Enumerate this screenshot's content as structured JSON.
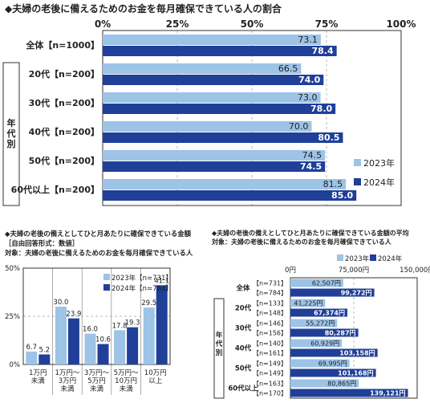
{
  "colors": {
    "y2023": "#9dc3e6",
    "y2024": "#1f3f99",
    "grid": "#b8b8b8",
    "frame": "#333333"
  },
  "top_chart": {
    "title": "◆夫婦の老後に備えるためのお金を毎月確保できている人の割合",
    "ticks": [
      "0%",
      "25%",
      "50%",
      "75%",
      "100%"
    ],
    "group_label": "年代別",
    "legend": [
      "2023年",
      "2024年"
    ],
    "chart_data": {
      "type": "bar",
      "orientation": "horizontal",
      "categories": [
        "全体【n=1000】",
        "20代【n=200】",
        "30代【n=200】",
        "40代【n=200】",
        "50代【n=200】",
        "60代以上【n=200】"
      ],
      "series": [
        {
          "name": "2023年",
          "values": [
            73.1,
            66.5,
            73.0,
            70.0,
            74.5,
            81.5
          ]
        },
        {
          "name": "2024年",
          "values": [
            78.4,
            74.0,
            78.0,
            80.5,
            74.5,
            85.0
          ]
        }
      ],
      "value_labels_2023": [
        "73.1",
        "66.5",
        "73.0",
        "70.0",
        "74.5",
        "81.5"
      ],
      "value_labels_2024": [
        "78.4",
        "74.0",
        "78.0",
        "80.5",
        "74.5",
        "85.0"
      ],
      "xlim": [
        0,
        100
      ],
      "legend_position": "right"
    }
  },
  "bottom_left": {
    "title1": "◆夫婦の老後の備えとしてひと月あたりに確保できている金額",
    "title2": "［自由回答形式：数値］",
    "title3": "対象：夫婦の老後に備えるためのお金を毎月確保できている人",
    "ticks": [
      "0%",
      "25%",
      "50%"
    ],
    "legend": [
      "2023年【n=731】",
      "2024年【n=784】"
    ],
    "chart_data": {
      "type": "bar",
      "categories": [
        [
          "1万円",
          "未満"
        ],
        [
          "1万円～",
          "3万円",
          "未満"
        ],
        [
          "3万円～",
          "5万円",
          "未満"
        ],
        [
          "5万円～",
          "10万円",
          "未満"
        ],
        [
          "10万円",
          "以上"
        ]
      ],
      "series": [
        {
          "name": "2023年【n=731】",
          "values": [
            6.7,
            30.0,
            16.0,
            17.8,
            29.5
          ]
        },
        {
          "name": "2024年【n=784】",
          "values": [
            5.2,
            23.9,
            10.6,
            19.3,
            41.1
          ]
        }
      ],
      "value_labels_2023": [
        "6.7",
        "30.0",
        "16.0",
        "17.8",
        "29.5"
      ],
      "value_labels_2024": [
        "5.2",
        "23.9",
        "10.6",
        "19.3",
        "41.1"
      ],
      "ylim": [
        0,
        50
      ],
      "legend_position": "top-right"
    }
  },
  "bottom_right": {
    "title1": "◆夫婦の老後の備えとしてひと月あたりに確保できている金額の平均",
    "title2": "対象：夫婦の老後に備えるためのお金を毎月確保できている人",
    "ticks": [
      "0円",
      "75,000円",
      "150,000円"
    ],
    "legend": [
      "2023年",
      "2024年"
    ],
    "group_label": "年代別",
    "chart_data": {
      "type": "bar",
      "orientation": "horizontal",
      "categories": [
        "全体",
        "20代",
        "30代",
        "40代",
        "50代",
        "60代以上"
      ],
      "n_2023": [
        "【n=731】",
        "【n=133】",
        "【n=146】",
        "【n=140】",
        "【n=149】",
        "【n=163】"
      ],
      "n_2024": [
        "【n=784】",
        "【n=148】",
        "【n=156】",
        "【n=161】",
        "【n=149】",
        "【n=170】"
      ],
      "series": [
        {
          "name": "2023年",
          "values": [
            62507,
            41225,
            55272,
            60929,
            69995,
            80865
          ]
        },
        {
          "name": "2024年",
          "values": [
            99272,
            67374,
            80287,
            103158,
            101168,
            139121
          ]
        }
      ],
      "value_labels_2023": [
        "62,507円",
        "41,225円",
        "55,272円",
        "60,929円",
        "69,995円",
        "80,865円"
      ],
      "value_labels_2024": [
        "99,272円",
        "67,374円",
        "80,287円",
        "103,158円",
        "101,168円",
        "139,121円"
      ],
      "xlim": [
        0,
        150000
      ]
    }
  }
}
